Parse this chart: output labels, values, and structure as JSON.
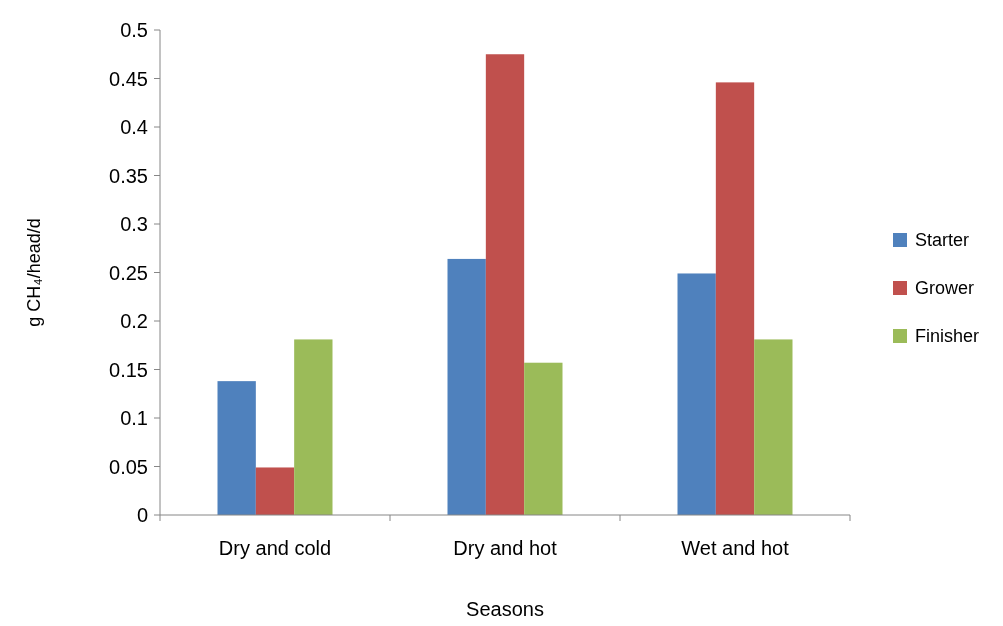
{
  "chart_data": {
    "type": "bar",
    "xlabel": "Seasons",
    "ylabel": "g CH₄/head/d",
    "categories": [
      "Dry and cold",
      "Dry and hot",
      "Wet and hot"
    ],
    "series": [
      {
        "name": "Starter",
        "color": "#4f81bd",
        "values": [
          0.138,
          0.264,
          0.249
        ]
      },
      {
        "name": "Grower",
        "color": "#c0504d",
        "values": [
          0.049,
          0.475,
          0.446
        ]
      },
      {
        "name": "Finisher",
        "color": "#9bbb59",
        "values": [
          0.181,
          0.157,
          0.181
        ]
      }
    ],
    "ylim": [
      0,
      0.5
    ],
    "yticks": [
      0,
      0.05,
      0.1,
      0.15,
      0.2,
      0.25,
      0.3,
      0.35,
      0.4,
      0.45,
      0.5
    ],
    "grid": false,
    "legend": "right"
  }
}
